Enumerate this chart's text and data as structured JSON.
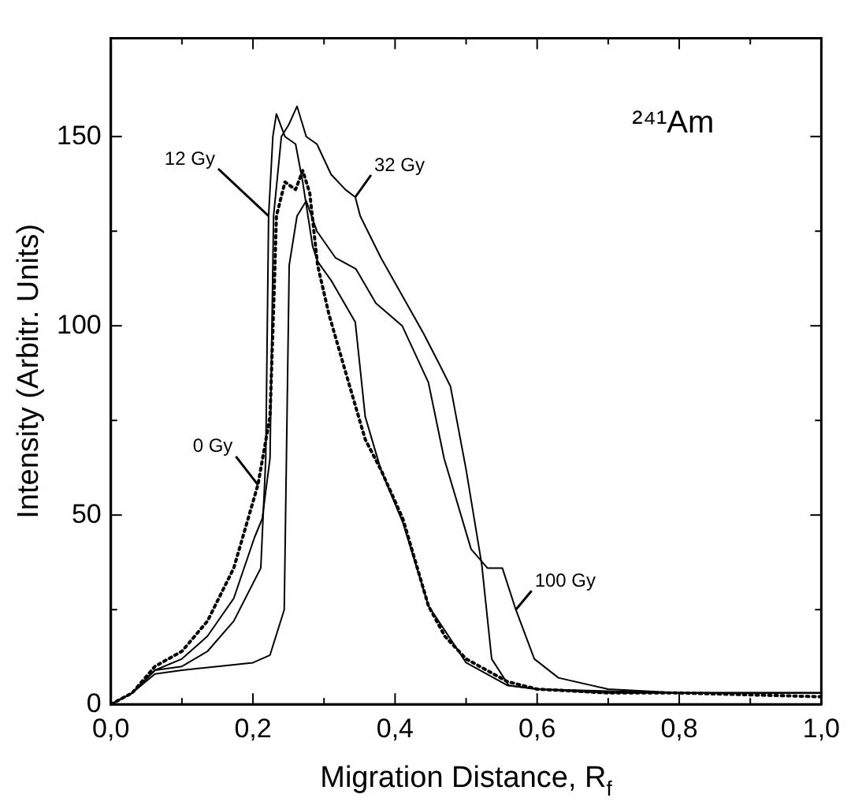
{
  "chart_data": {
    "type": "line",
    "xlabel": "Migration Distance, R$_{f}$",
    "ylabel": "Intensity (Arbitr. Units)",
    "annotations": [
      "²⁴¹Am"
    ],
    "xlim": [
      0,
      1
    ],
    "ylim": [
      0,
      176
    ],
    "xticks": [
      {
        "value": 0,
        "label": "0,0"
      },
      {
        "value": 0.1,
        "label": null
      },
      {
        "value": 0.2,
        "label": "0,2"
      },
      {
        "value": 0.3,
        "label": null
      },
      {
        "value": 0.4,
        "label": "0,4"
      },
      {
        "value": 0.5,
        "label": null
      },
      {
        "value": 0.6,
        "label": "0,6"
      },
      {
        "value": 0.7,
        "label": null
      },
      {
        "value": 0.8,
        "label": "0,8"
      },
      {
        "value": 0.9,
        "label": null
      },
      {
        "value": 1,
        "label": "1,0"
      }
    ],
    "yticks": [
      0,
      {
        "value": 25,
        "label": null
      },
      50,
      {
        "value": 75,
        "label": null
      },
      100,
      {
        "value": 125,
        "label": null
      },
      150
    ],
    "grid": false,
    "legend": false,
    "marker": "none",
    "series": [
      {
        "name": "0 Gy",
        "color": "#000000",
        "line_style": "dotted",
        "x": [
          0,
          0.03,
          0.062,
          0.1,
          0.136,
          0.173,
          0.207,
          0.224,
          0.23,
          0.233,
          0.245,
          0.26,
          0.27,
          0.28,
          0.291,
          0.307,
          0.33,
          0.358,
          0.38,
          0.411,
          0.447,
          0.47,
          0.5,
          0.558,
          0.6,
          0.7,
          0.8,
          1.0
        ],
        "values": [
          0,
          3,
          10,
          14,
          22,
          36,
          58,
          76,
          110,
          129,
          138,
          136,
          141,
          135,
          116,
          103,
          88,
          70,
          62,
          49,
          26,
          18,
          12,
          6,
          4,
          3,
          3,
          2
        ]
      },
      {
        "name": "12 Gy",
        "color": "#000000",
        "line_style": "solid",
        "x": [
          0,
          0.03,
          0.062,
          0.1,
          0.136,
          0.173,
          0.211,
          0.218,
          0.222,
          0.228,
          0.233,
          0.245,
          0.26,
          0.27,
          0.284,
          0.291,
          0.31,
          0.344,
          0.358,
          0.38,
          0.411,
          0.447,
          0.5,
          0.558,
          0.6,
          0.7,
          0.8,
          1.0
        ],
        "values": [
          0,
          3,
          9,
          10,
          14,
          22,
          36,
          65,
          129,
          150,
          156,
          150,
          148,
          138,
          121,
          117,
          112,
          101,
          76,
          62,
          48,
          26,
          11,
          5,
          4,
          3,
          3,
          3
        ]
      },
      {
        "name": "32 Gy",
        "color": "#000000",
        "line_style": "solid",
        "x": [
          0,
          0.03,
          0.062,
          0.1,
          0.136,
          0.173,
          0.202,
          0.213,
          0.224,
          0.229,
          0.24,
          0.25,
          0.262,
          0.275,
          0.29,
          0.31,
          0.33,
          0.344,
          0.351,
          0.38,
          0.41,
          0.44,
          0.462,
          0.478,
          0.5,
          0.522,
          0.536,
          0.56,
          0.6,
          0.8,
          1.0
        ],
        "values": [
          0,
          3,
          9,
          12,
          18,
          28,
          44,
          49,
          65,
          129,
          150,
          153,
          158,
          150,
          148,
          140,
          136,
          134,
          129,
          118,
          108,
          98,
          90,
          84,
          62,
          37,
          12,
          5,
          4,
          3,
          3
        ]
      },
      {
        "name": "100 Gy",
        "color": "#000000",
        "line_style": "solid",
        "x": [
          0,
          0.03,
          0.062,
          0.1,
          0.15,
          0.2,
          0.224,
          0.244,
          0.251,
          0.262,
          0.275,
          0.29,
          0.316,
          0.345,
          0.373,
          0.41,
          0.447,
          0.469,
          0.507,
          0.53,
          0.551,
          0.57,
          0.596,
          0.63,
          0.7,
          0.8,
          1.0
        ],
        "values": [
          0,
          3,
          8,
          9,
          10,
          11,
          13,
          25,
          116,
          129,
          133,
          125,
          118,
          115,
          106,
          100,
          85,
          65,
          41,
          36,
          36,
          25,
          12,
          7,
          4,
          3,
          3
        ]
      }
    ]
  }
}
